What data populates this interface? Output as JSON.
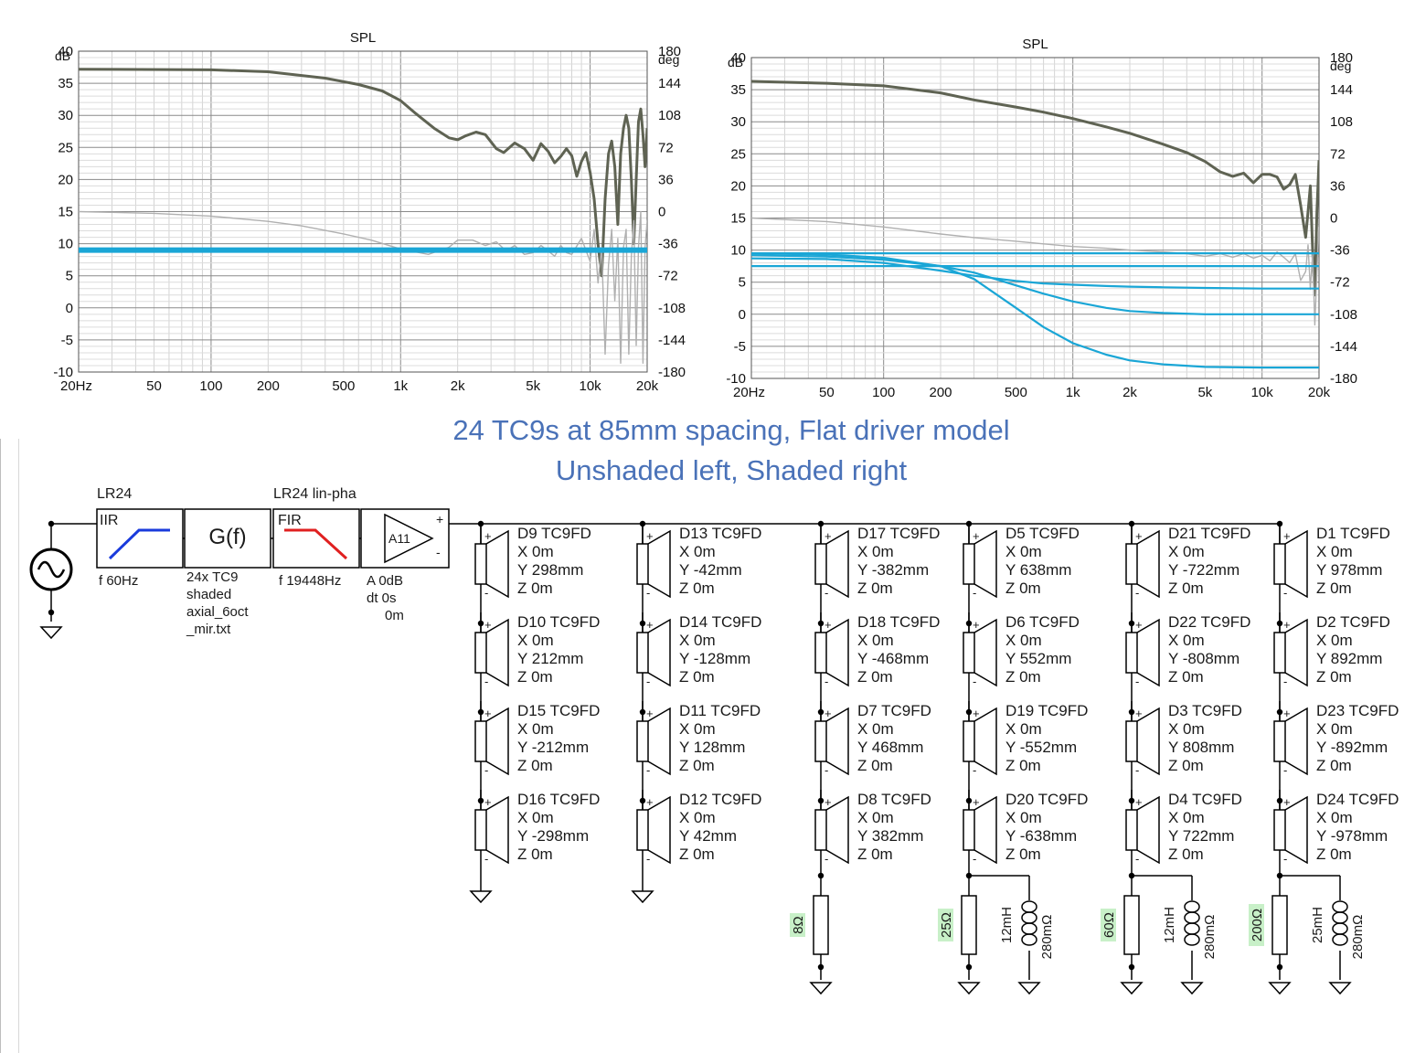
{
  "chart_data": [
    {
      "type": "line",
      "title": "SPL",
      "y_unit": "dB",
      "y2_unit": "deg",
      "x_tick_labels": [
        "20Hz",
        "50",
        "100",
        "200",
        "500",
        "1k",
        "2k",
        "5k",
        "10k",
        "20k"
      ],
      "x_ticks": [
        20,
        50,
        100,
        200,
        500,
        1000,
        2000,
        5000,
        10000,
        20000
      ],
      "y_ticks": [
        40,
        35,
        30,
        25,
        20,
        15,
        10,
        5,
        0,
        -5,
        -10
      ],
      "y2_ticks": [
        180,
        144,
        108,
        72,
        36,
        0,
        -36,
        -72,
        -108,
        -144,
        -180
      ],
      "xlim": [
        20,
        20000
      ],
      "xscale": "log",
      "ylim": [
        -10,
        40
      ],
      "y2lim": [
        -180,
        180
      ],
      "grid": true,
      "series": [
        {
          "color": "#5f6353",
          "axis": "y",
          "x": [
            20,
            100,
            200,
            400,
            600,
            800,
            1000,
            1200,
            1500,
            1800,
            2000,
            2200,
            2500,
            2800,
            3200,
            3500,
            4000,
            4500,
            5000,
            5500,
            6000,
            6500,
            7000,
            7500,
            8000,
            8500,
            9000,
            9500,
            10000,
            10500,
            11000,
            11500,
            12000,
            12500,
            13000,
            13500,
            14000,
            14500,
            15000,
            15500,
            16000,
            16500,
            17000,
            17500,
            18000,
            18500,
            19000,
            19500,
            20000
          ],
          "y": [
            37.2,
            37.1,
            36.8,
            35.8,
            34.8,
            33.8,
            32.3,
            30.3,
            28.0,
            26.5,
            26.2,
            26.8,
            27.4,
            27.0,
            24.8,
            24.2,
            25.7,
            24.8,
            23.0,
            25.6,
            24.4,
            22.6,
            23.6,
            24.8,
            23.7,
            20.5,
            22.8,
            24.2,
            21.1,
            17.0,
            10.0,
            5.0,
            17.0,
            24.0,
            26.0,
            22.0,
            13.0,
            24.0,
            28.0,
            30.0,
            28.0,
            20.0,
            10.0,
            20.0,
            29.0,
            31.0,
            27.0,
            22.0,
            28.0
          ]
        },
        {
          "color": "#b0b0b0",
          "axis": "y2",
          "x": [
            20,
            50,
            100,
            200,
            300,
            500,
            700,
            1000,
            1400,
            1800,
            2000,
            2400,
            2800,
            3200,
            3600,
            4000,
            4500,
            5000,
            5500,
            6000,
            6500,
            7000,
            7500,
            8000,
            9000,
            10000,
            10500,
            11000,
            11500,
            12000,
            12500,
            13000,
            13500,
            14000,
            14500,
            15000,
            15500,
            16000,
            16500,
            17000,
            17500,
            18000,
            18500,
            19000,
            19500,
            20000
          ],
          "y": [
            0,
            -2,
            -5,
            -11,
            -16,
            -25,
            -32,
            -42,
            -48,
            -40,
            -32,
            -32,
            -38,
            -34,
            -44,
            -38,
            -48,
            -46,
            -38,
            -44,
            -50,
            -38,
            -46,
            -48,
            -30,
            -56,
            -20,
            -80,
            -40,
            -160,
            -60,
            -20,
            -100,
            -30,
            -170,
            -40,
            -20,
            -160,
            -50,
            -10,
            -150,
            -40,
            0,
            -170,
            -40,
            -10
          ]
        },
        {
          "color": "#1aa6d6",
          "axis": "y",
          "width": "thick",
          "x": [
            20,
            20000
          ],
          "y": [
            9.0,
            9.0
          ]
        }
      ]
    },
    {
      "type": "line",
      "title": "SPL",
      "y_unit": "dB",
      "y2_unit": "deg",
      "x_tick_labels": [
        "20Hz",
        "50",
        "100",
        "200",
        "500",
        "1k",
        "2k",
        "5k",
        "10k",
        "20k"
      ],
      "x_ticks": [
        20,
        50,
        100,
        200,
        500,
        1000,
        2000,
        5000,
        10000,
        20000
      ],
      "y_ticks": [
        40,
        35,
        30,
        25,
        20,
        15,
        10,
        5,
        0,
        -5,
        -10
      ],
      "y2_ticks": [
        180,
        144,
        108,
        72,
        36,
        0,
        -36,
        -72,
        -108,
        -144,
        -180
      ],
      "xlim": [
        20,
        20000
      ],
      "xscale": "log",
      "ylim": [
        -10,
        40
      ],
      "y2lim": [
        -180,
        180
      ],
      "grid": true,
      "series": [
        {
          "color": "#5f6353",
          "axis": "y",
          "x": [
            20,
            50,
            100,
            200,
            300,
            500,
            700,
            1000,
            1500,
            2000,
            3000,
            4000,
            5000,
            6000,
            7000,
            8000,
            9000,
            10000,
            11000,
            12000,
            13000,
            14000,
            15000,
            16000,
            17000,
            17500,
            18000,
            18500,
            19000,
            19500,
            20000
          ],
          "y": [
            36.3,
            36.0,
            35.6,
            34.5,
            33.4,
            32.3,
            31.5,
            30.5,
            29.2,
            28.2,
            26.5,
            25.2,
            23.8,
            22.2,
            21.5,
            22.0,
            20.5,
            21.8,
            21.8,
            21.4,
            19.5,
            20.2,
            21.8,
            17.0,
            12.0,
            16.0,
            20.0,
            10.0,
            3.0,
            16.0,
            24.0
          ]
        },
        {
          "color": "#b0b0b0",
          "axis": "y2",
          "x": [
            20,
            50,
            100,
            200,
            300,
            500,
            700,
            1000,
            1500,
            2000,
            3000,
            4000,
            5000,
            6000,
            7000,
            8000,
            9000,
            10000,
            11000,
            12000,
            13000,
            14000,
            15000,
            16000,
            17000,
            17500,
            18000,
            18500,
            19000,
            19500,
            20000
          ],
          "y": [
            0,
            -4,
            -10,
            -18,
            -22,
            -26,
            -29,
            -32,
            -34,
            -36,
            -38,
            -40,
            -43,
            -40,
            -44,
            -40,
            -45,
            -42,
            -48,
            -38,
            -44,
            -50,
            -40,
            -70,
            -60,
            -30,
            -80,
            -40,
            -120,
            -60,
            -10
          ]
        },
        {
          "color": "#1aa6d6",
          "axis": "y",
          "x": [
            20,
            20000
          ],
          "y": [
            9.5,
            9.5
          ]
        },
        {
          "color": "#1aa6d6",
          "axis": "y",
          "x": [
            20,
            20000
          ],
          "y": [
            7.5,
            7.5
          ]
        },
        {
          "color": "#1aa6d6",
          "axis": "y",
          "x": [
            20,
            50,
            100,
            200,
            300,
            500,
            700,
            1000,
            1500,
            2000,
            3000,
            5000,
            10000,
            20000
          ],
          "y": [
            8.7,
            8.6,
            8.0,
            6.8,
            6.0,
            5.2,
            4.8,
            4.6,
            4.4,
            4.3,
            4.2,
            4.1,
            4.0,
            4.0
          ]
        },
        {
          "color": "#1aa6d6",
          "axis": "y",
          "x": [
            20,
            50,
            100,
            200,
            300,
            500,
            700,
            1000,
            1500,
            2000,
            3000,
            5000,
            10000,
            20000
          ],
          "y": [
            9.2,
            9.0,
            8.5,
            7.5,
            6.5,
            4.5,
            3.2,
            2.0,
            1.0,
            0.5,
            0.2,
            0.0,
            0.0,
            0.0
          ]
        },
        {
          "color": "#1aa6d6",
          "axis": "y",
          "x": [
            20,
            50,
            100,
            200,
            300,
            500,
            700,
            1000,
            1500,
            2000,
            3000,
            5000,
            10000,
            20000
          ],
          "y": [
            9.5,
            9.3,
            8.8,
            7.5,
            5.5,
            1.0,
            -2.0,
            -4.5,
            -6.3,
            -7.2,
            -7.8,
            -8.2,
            -8.3,
            -8.3
          ]
        }
      ]
    }
  ],
  "caption": {
    "line1": "24 TC9s at 85mm spacing, Flat driver model",
    "line2": "Unshaded left, Shaded right"
  },
  "schematic": {
    "blocks": [
      {
        "header": "LR24",
        "inner": "IIR",
        "param": "f  60Hz"
      },
      {
        "header": "",
        "inner": "G(f)",
        "param_lines": [
          "24x TC9",
          "shaded",
          "axial_6oct",
          "_mir.txt"
        ]
      },
      {
        "header": "LR24 lin-pha",
        "inner": "FIR",
        "param": "f  19448Hz"
      },
      {
        "header": "",
        "inner": "A11",
        "param_lines": [
          "A  0dB",
          "dt 0s",
          "0m"
        ]
      }
    ],
    "plus": "+",
    "minus": "-",
    "columns": [
      {
        "drivers": [
          {
            "name": "D9 TC9FD",
            "x": "X 0m",
            "y": "Y 298mm",
            "z": "Z 0m"
          },
          {
            "name": "D10 TC9FD",
            "x": "X 0m",
            "y": "Y 212mm",
            "z": "Z 0m"
          },
          {
            "name": "D15 TC9FD",
            "x": "X 0m",
            "y": "Y -212mm",
            "z": "Z 0m"
          },
          {
            "name": "D16 TC9FD",
            "x": "X 0m",
            "y": "Y -298mm",
            "z": "Z 0m"
          }
        ],
        "resistor": "",
        "inductor": "",
        "inductor_r": ""
      },
      {
        "drivers": [
          {
            "name": "D13 TC9FD",
            "x": "X 0m",
            "y": "Y -42mm",
            "z": "Z 0m"
          },
          {
            "name": "D14 TC9FD",
            "x": "X 0m",
            "y": "Y -128mm",
            "z": "Z 0m"
          },
          {
            "name": "D11 TC9FD",
            "x": "X 0m",
            "y": "Y 128mm",
            "z": "Z 0m"
          },
          {
            "name": "D12 TC9FD",
            "x": "X 0m",
            "y": "Y 42mm",
            "z": "Z 0m"
          }
        ],
        "resistor": "",
        "inductor": "",
        "inductor_r": ""
      },
      {
        "drivers": [
          {
            "name": "D17 TC9FD",
            "x": "X 0m",
            "y": "Y -382mm",
            "z": "Z 0m"
          },
          {
            "name": "D18 TC9FD",
            "x": "X 0m",
            "y": "Y -468mm",
            "z": "Z 0m"
          },
          {
            "name": "D7 TC9FD",
            "x": "X 0m",
            "y": "Y 468mm",
            "z": "Z 0m"
          },
          {
            "name": "D8 TC9FD",
            "x": "X 0m",
            "y": "Y 382mm",
            "z": "Z 0m"
          }
        ],
        "resistor": "8Ω",
        "inductor": "",
        "inductor_r": ""
      },
      {
        "drivers": [
          {
            "name": "D5 TC9FD",
            "x": "X 0m",
            "y": "Y 638mm",
            "z": "Z 0m"
          },
          {
            "name": "D6 TC9FD",
            "x": "X 0m",
            "y": "Y 552mm",
            "z": "Z 0m"
          },
          {
            "name": "D19 TC9FD",
            "x": "X 0m",
            "y": "Y -552mm",
            "z": "Z 0m"
          },
          {
            "name": "D20 TC9FD",
            "x": "X 0m",
            "y": "Y -638mm",
            "z": "Z 0m"
          }
        ],
        "resistor": "25Ω",
        "inductor": "12mH",
        "inductor_r": "280mΩ"
      },
      {
        "drivers": [
          {
            "name": "D21 TC9FD",
            "x": "X 0m",
            "y": "Y -722mm",
            "z": "Z 0m"
          },
          {
            "name": "D22 TC9FD",
            "x": "X 0m",
            "y": "Y -808mm",
            "z": "Z 0m"
          },
          {
            "name": "D3 TC9FD",
            "x": "X 0m",
            "y": "Y 808mm",
            "z": "Z 0m"
          },
          {
            "name": "D4 TC9FD",
            "x": "X 0m",
            "y": "Y 722mm",
            "z": "Z 0m"
          }
        ],
        "resistor": "60Ω",
        "inductor": "12mH",
        "inductor_r": "280mΩ"
      },
      {
        "drivers": [
          {
            "name": "D1 TC9FD",
            "x": "X 0m",
            "y": "Y 978mm",
            "z": "Z 0m"
          },
          {
            "name": "D2 TC9FD",
            "x": "X 0m",
            "y": "Y 892mm",
            "z": "Z 0m"
          },
          {
            "name": "D23 TC9FD",
            "x": "X 0m",
            "y": "Y -892mm",
            "z": "Z 0m"
          },
          {
            "name": "D24 TC9FD",
            "x": "X 0m",
            "y": "Y -978mm",
            "z": "Z 0m"
          }
        ],
        "resistor": "200Ω",
        "inductor": "25mH",
        "inductor_r": "280mΩ"
      }
    ]
  },
  "colors": {
    "spl": "#5f6353",
    "phase": "#b0b0b0",
    "target": "#1aa6d6",
    "caption": "#4a72b8",
    "highpass": "#1a3bdc",
    "lowpass": "#e02020",
    "resistor_label_bg": "#c8f0c8"
  }
}
